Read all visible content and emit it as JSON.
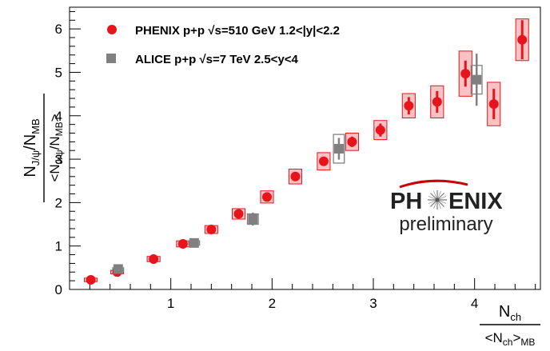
{
  "chart_data": {
    "type": "scatter",
    "xlim": [
      0,
      4.65
    ],
    "ylim": [
      0,
      6.5
    ],
    "x_ticks": [
      1,
      2,
      3,
      4
    ],
    "y_ticks": [
      0,
      1,
      2,
      3,
      4,
      5,
      6
    ],
    "x_tick_labels": [
      "1",
      "2",
      "3",
      "4"
    ],
    "y_tick_labels": [
      "0",
      "1",
      "2",
      "3",
      "4",
      "5",
      "6"
    ],
    "xlabel": {
      "num": "N",
      "num_sub": "ch",
      "den": "<N",
      "den_sub": "ch",
      "den_close": ">",
      "den_close_sub": "MB"
    },
    "ylabel": {
      "num": "N",
      "num_sub": "J/ψ",
      "num_mid": "/N",
      "num_sub2": "MB",
      "den": "<N",
      "den_sub": "J/ψ",
      "den_mid": "/N",
      "den_sub2": "MB",
      "den_close": ">"
    },
    "grid": false,
    "legend_position": "top-left",
    "series": [
      {
        "name": "PHENIX p+p √s=510 GeV  1.2<|y|<2.2",
        "marker": "circle",
        "color": "#e8141c",
        "box_color": "#e8141c",
        "points": [
          {
            "x": 0.21,
            "y": 0.22,
            "err": 0.04,
            "sys": 0.04,
            "xw": 0.04
          },
          {
            "x": 0.47,
            "y": 0.4,
            "err": 0.04,
            "sys": 0.04,
            "xw": 0.04
          },
          {
            "x": 0.83,
            "y": 0.7,
            "err": 0.04,
            "sys": 0.06,
            "xw": 0.04
          },
          {
            "x": 1.12,
            "y": 1.05,
            "err": 0.04,
            "sys": 0.07,
            "xw": 0.04
          },
          {
            "x": 1.4,
            "y": 1.38,
            "err": 0.05,
            "sys": 0.09,
            "xw": 0.04
          },
          {
            "x": 1.67,
            "y": 1.74,
            "err": 0.06,
            "sys": 0.12,
            "xw": 0.04
          },
          {
            "x": 1.95,
            "y": 2.13,
            "err": 0.07,
            "sys": 0.14,
            "xw": 0.04
          },
          {
            "x": 2.23,
            "y": 2.6,
            "err": 0.08,
            "sys": 0.17,
            "xw": 0.04
          },
          {
            "x": 2.51,
            "y": 2.95,
            "err": 0.1,
            "sys": 0.2,
            "xw": 0.04
          },
          {
            "x": 2.79,
            "y": 3.4,
            "err": 0.12,
            "sys": 0.2,
            "xw": 0.04
          },
          {
            "x": 3.07,
            "y": 3.67,
            "err": 0.15,
            "sys": 0.22,
            "xw": 0.04
          },
          {
            "x": 3.35,
            "y": 4.23,
            "err": 0.2,
            "sys": 0.28,
            "xw": 0.04
          },
          {
            "x": 3.63,
            "y": 4.32,
            "err": 0.25,
            "sys": 0.37,
            "xw": 0.04
          },
          {
            "x": 3.91,
            "y": 4.97,
            "err": 0.3,
            "sys": 0.52,
            "xw": 0.04
          },
          {
            "x": 4.19,
            "y": 4.27,
            "err": 0.35,
            "sys": 0.5,
            "xw": 0.04
          },
          {
            "x": 4.47,
            "y": 5.75,
            "err": 0.45,
            "sys": 0.48,
            "xw": 0.04
          }
        ]
      },
      {
        "name": "ALICE p+p √s=7 TeV  2.5<y<4",
        "marker": "square",
        "color": "#808080",
        "box_color": "#808080",
        "points": [
          {
            "x": 0.48,
            "y": 0.47,
            "err": 0.03,
            "sys": 0.03,
            "xw": 0.03
          },
          {
            "x": 1.23,
            "y": 1.07,
            "err": 0.05,
            "sys": 0.05,
            "xw": 0.03
          },
          {
            "x": 1.81,
            "y": 1.62,
            "err": 0.15,
            "sys": 0.12,
            "xw": 0.03
          },
          {
            "x": 2.66,
            "y": 3.24,
            "err": 0.25,
            "sys": 0.33,
            "xw": 0.03
          },
          {
            "x": 4.02,
            "y": 4.83,
            "err": 0.6,
            "sys": 0.33,
            "xw": 0.03
          }
        ]
      }
    ]
  },
  "logo": {
    "name_left": "PH",
    "name_right": "ENIX",
    "subtitle": "preliminary",
    "logo_color": "#cc0000"
  }
}
